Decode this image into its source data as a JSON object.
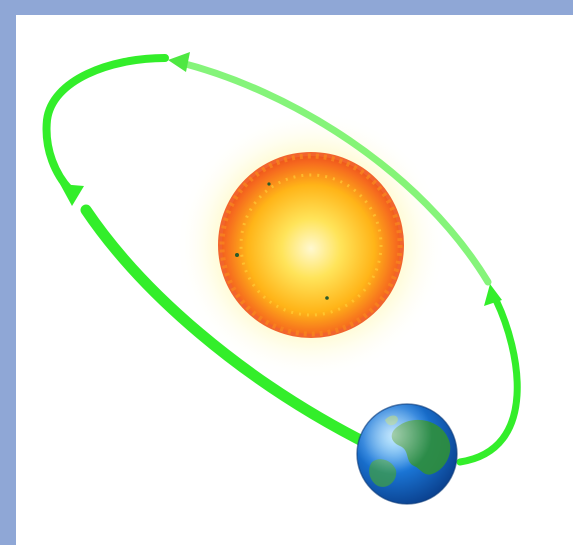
{
  "scene": {
    "subject": "sun-earth-orbit-illustration",
    "colors": {
      "frame": "#8fa7d6",
      "background": "#ffffff",
      "orbit_arrow": "#33ee2a",
      "sun_core": "#fff2a6",
      "sun_mid": "#ffc21a",
      "sun_edge": "#f0531c",
      "glow": "#fff36b",
      "earth_ocean": "#1b78d9",
      "earth_land": "#2f8f3a"
    }
  }
}
